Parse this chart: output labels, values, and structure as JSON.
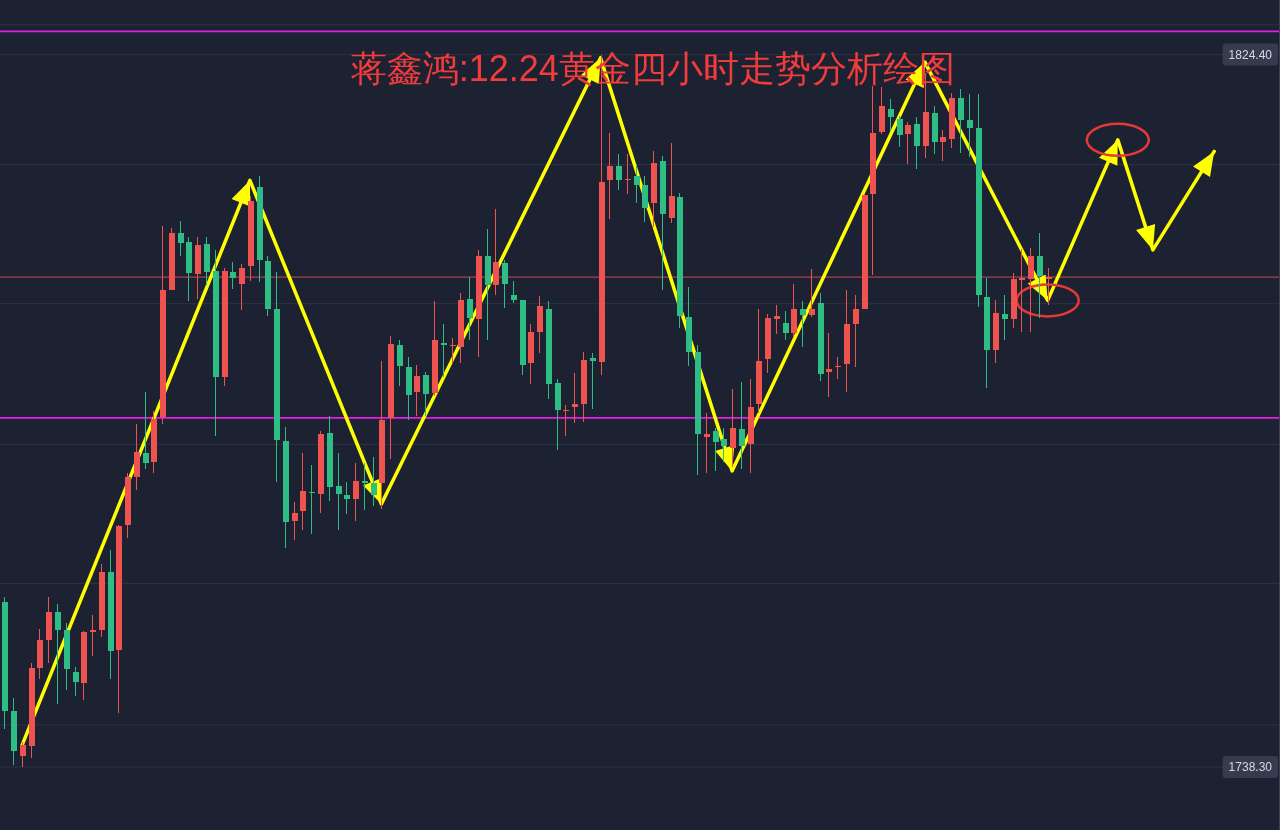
{
  "chart_data": {
    "type": "candlestick",
    "title": "蒋鑫鸿:12.24黄金四小时走势分析绘图",
    "categories": [
      null,
      null,
      null,
      null,
      null,
      null,
      null,
      null,
      null,
      null,
      null,
      null,
      null,
      null,
      null,
      null,
      null,
      null,
      null,
      null,
      null,
      null,
      null,
      null,
      null,
      null,
      null,
      null,
      null,
      null,
      null,
      null,
      null,
      null,
      null,
      null,
      null,
      null,
      null,
      null,
      null,
      null,
      null,
      null,
      null,
      null,
      null,
      null,
      null,
      null,
      null,
      null,
      null,
      null,
      null,
      null,
      null,
      null,
      null,
      null,
      null,
      null,
      null,
      null,
      null,
      null,
      null,
      null,
      null,
      null,
      null,
      null,
      null,
      null,
      null,
      null,
      null,
      null,
      null,
      null,
      null,
      null,
      null,
      null,
      null,
      null,
      null,
      null,
      null,
      null,
      null,
      null,
      null,
      null,
      null,
      null,
      null,
      null,
      null,
      null,
      null,
      null,
      null,
      null,
      null,
      null,
      null,
      null,
      null,
      null,
      null,
      null,
      null,
      null,
      null,
      null,
      null,
      null,
      null,
      null,
      null,
      null,
      null,
      null,
      null,
      null,
      null,
      null,
      null,
      null,
      null,
      null,
      null,
      null,
      null,
      null,
      null,
      null,
      null,
      null,
      null,
      null,
      null,
      null,
      null,
      null
    ],
    "ohlc": [
      [
        1758.3,
        1758.8,
        1742.9,
        1745.1
      ],
      [
        1745.1,
        1746.6,
        1738.6,
        1740.2
      ],
      [
        1739.7,
        1741.3,
        1738.3,
        1741.0
      ],
      [
        1740.9,
        1750.9,
        1739.4,
        1750.3
      ],
      [
        1750.3,
        1755.0,
        1748.9,
        1753.7
      ],
      [
        1753.7,
        1758.8,
        1750.9,
        1757.0
      ],
      [
        1757.1,
        1758.0,
        1745.9,
        1754.9
      ],
      [
        1754.9,
        1755.7,
        1747.6,
        1750.1
      ],
      [
        1749.8,
        1750.4,
        1746.9,
        1748.6
      ],
      [
        1748.5,
        1754.7,
        1746.4,
        1754.6
      ],
      [
        1754.6,
        1756.7,
        1751.7,
        1754.9
      ],
      [
        1754.9,
        1762.9,
        1754.0,
        1761.9
      ],
      [
        1761.9,
        1764.5,
        1748.9,
        1752.3
      ],
      [
        1752.5,
        1767.5,
        1744.8,
        1767.4
      ],
      [
        1767.5,
        1773.8,
        1766.0,
        1773.3
      ],
      [
        1773.3,
        1779.8,
        1771.8,
        1776.4
      ],
      [
        1776.3,
        1783.6,
        1774.3,
        1775.0
      ],
      [
        1775.2,
        1781.3,
        1773.8,
        1780.4
      ],
      [
        1780.6,
        1803.7,
        1779.8,
        1796.0
      ],
      [
        1796.0,
        1803.4,
        1795.9,
        1802.9
      ],
      [
        1802.9,
        1804.3,
        1800.1,
        1801.6
      ],
      [
        1801.8,
        1802.3,
        1794.6,
        1798.0
      ],
      [
        1797.9,
        1802.4,
        1794.9,
        1801.4
      ],
      [
        1801.5,
        1802.3,
        1796.6,
        1798.1
      ],
      [
        1798.2,
        1800.8,
        1778.3,
        1785.5
      ],
      [
        1785.4,
        1798.6,
        1784.3,
        1798.2
      ],
      [
        1798.1,
        1799.3,
        1796.1,
        1797.4
      ],
      [
        1796.7,
        1799.1,
        1793.5,
        1798.6
      ],
      [
        1798.8,
        1807.3,
        1797.1,
        1806.7
      ],
      [
        1808.4,
        1809.7,
        1796.9,
        1799.6
      ],
      [
        1799.4,
        1800.1,
        1792.8,
        1793.6
      ],
      [
        1793.6,
        1798.1,
        1772.8,
        1777.8
      ],
      [
        1777.7,
        1779.4,
        1764.8,
        1767.9
      ],
      [
        1768.0,
        1770.3,
        1765.8,
        1769.0
      ],
      [
        1769.2,
        1776.2,
        1767.0,
        1771.7
      ],
      [
        1771.5,
        1774.8,
        1766.5,
        1771.4
      ],
      [
        1771.3,
        1778.9,
        1769.0,
        1778.5
      ],
      [
        1778.7,
        1780.7,
        1770.5,
        1772.2
      ],
      [
        1772.3,
        1776.2,
        1766.9,
        1771.3
      ],
      [
        1771.2,
        1772.7,
        1768.9,
        1770.7
      ],
      [
        1770.7,
        1775.1,
        1768.1,
        1772.9
      ],
      [
        1772.9,
        1775.1,
        1769.4,
        1772.6
      ],
      [
        1772.6,
        1775.8,
        1769.9,
        1771.2
      ],
      [
        1772.6,
        1787.4,
        1769.5,
        1780.2
      ],
      [
        1780.5,
        1790.4,
        1775.5,
        1789.4
      ],
      [
        1789.3,
        1789.9,
        1784.3,
        1786.8
      ],
      [
        1786.6,
        1787.9,
        1780.3,
        1783.3
      ],
      [
        1783.6,
        1786.9,
        1780.7,
        1785.6
      ],
      [
        1785.7,
        1786.1,
        1780.7,
        1783.4
      ],
      [
        1783.5,
        1794.6,
        1783.1,
        1789.9
      ],
      [
        1789.5,
        1791.8,
        1785.5,
        1789.3
      ],
      [
        1789.2,
        1790.2,
        1787.1,
        1789.3
      ],
      [
        1789.1,
        1795.6,
        1787.1,
        1794.8
      ],
      [
        1794.9,
        1797.5,
        1789.9,
        1792.6
      ],
      [
        1792.4,
        1800.8,
        1787.9,
        1800.1
      ],
      [
        1800.1,
        1803.3,
        1789.9,
        1796.5
      ],
      [
        1796.5,
        1805.7,
        1795.4,
        1799.3
      ],
      [
        1799.2,
        1799.6,
        1793.8,
        1796.7
      ],
      [
        1795.4,
        1797.0,
        1794.4,
        1794.8
      ],
      [
        1794.7,
        1794.8,
        1785.7,
        1786.9
      ],
      [
        1787.1,
        1791.8,
        1784.6,
        1790.9
      ],
      [
        1790.9,
        1795.2,
        1788.3,
        1794.0
      ],
      [
        1793.7,
        1794.6,
        1782.8,
        1784.6
      ],
      [
        1784.7,
        1785.2,
        1776.6,
        1781.4
      ],
      [
        1781.3,
        1782.1,
        1778.3,
        1781.4
      ],
      [
        1781.8,
        1785.9,
        1779.9,
        1782.2
      ],
      [
        1782.2,
        1788.5,
        1780.0,
        1787.5
      ],
      [
        1787.7,
        1788.3,
        1781.6,
        1787.4
      ],
      [
        1787.3,
        1824.4,
        1785.7,
        1809.0
      ],
      [
        1809.3,
        1814.9,
        1804.5,
        1811.0
      ],
      [
        1811.0,
        1812.4,
        1808.0,
        1809.2
      ],
      [
        1809.2,
        1812.4,
        1807.6,
        1809.4
      ],
      [
        1809.7,
        1810.9,
        1806.5,
        1808.7
      ],
      [
        1808.6,
        1809.7,
        1804.2,
        1805.9
      ],
      [
        1806.5,
        1812.7,
        1803.6,
        1811.3
      ],
      [
        1811.6,
        1812.2,
        1795.9,
        1805.1
      ],
      [
        1804.7,
        1813.7,
        1804.1,
        1807.3
      ],
      [
        1807.2,
        1807.7,
        1791.4,
        1792.8
      ],
      [
        1792.7,
        1796.3,
        1786.8,
        1788.5
      ],
      [
        1788.5,
        1789.3,
        1773.6,
        1778.6
      ],
      [
        1778.2,
        1781.1,
        1773.8,
        1778.5
      ],
      [
        1778.9,
        1779.3,
        1774.1,
        1777.6
      ],
      [
        1777.9,
        1779.3,
        1775.2,
        1777.1
      ],
      [
        1776.9,
        1784.0,
        1774.6,
        1779.3
      ],
      [
        1779.1,
        1784.8,
        1774.3,
        1777.1
      ],
      [
        1777.3,
        1785.2,
        1773.8,
        1781.8
      ],
      [
        1782.2,
        1793.7,
        1781.1,
        1787.4
      ],
      [
        1787.6,
        1793.0,
        1785.9,
        1792.6
      ],
      [
        1792.5,
        1794.2,
        1790.6,
        1792.8
      ],
      [
        1792.0,
        1793.4,
        1789.9,
        1790.7
      ],
      [
        1790.7,
        1796.7,
        1790.3,
        1793.6
      ],
      [
        1793.7,
        1794.6,
        1789.1,
        1792.9
      ],
      [
        1792.9,
        1798.5,
        1792.7,
        1793.6
      ],
      [
        1794.4,
        1795.6,
        1785.0,
        1785.8
      ],
      [
        1786.0,
        1790.8,
        1783.0,
        1786.4
      ],
      [
        1786.6,
        1787.9,
        1785.2,
        1786.8
      ],
      [
        1787.0,
        1795.9,
        1783.6,
        1791.9
      ],
      [
        1791.8,
        1795.4,
        1786.6,
        1793.7
      ],
      [
        1793.7,
        1807.5,
        1793.6,
        1807.4
      ],
      [
        1807.5,
        1820.6,
        1797.8,
        1814.9
      ],
      [
        1815.0,
        1820.5,
        1814.8,
        1818.2
      ],
      [
        1817.8,
        1819.0,
        1815.2,
        1816.9
      ],
      [
        1816.6,
        1817.0,
        1813.2,
        1814.7
      ],
      [
        1814.8,
        1816.2,
        1811.2,
        1815.9
      ],
      [
        1816.0,
        1816.9,
        1810.6,
        1813.3
      ],
      [
        1813.4,
        1822.2,
        1811.9,
        1817.5
      ],
      [
        1817.4,
        1818.2,
        1812.4,
        1813.9
      ],
      [
        1813.9,
        1815.3,
        1811.6,
        1814.5
      ],
      [
        1814.2,
        1819.8,
        1813.1,
        1819.2
      ],
      [
        1819.1,
        1820.3,
        1812.5,
        1816.5
      ],
      [
        1816.5,
        1819.6,
        1812.0,
        1815.5
      ],
      [
        1815.5,
        1819.6,
        1793.9,
        1795.4
      ],
      [
        1795.1,
        1797.4,
        1784.1,
        1788.7
      ],
      [
        1788.7,
        1794.8,
        1787.1,
        1793.2
      ],
      [
        1793.1,
        1795.4,
        1789.9,
        1792.5
      ],
      [
        1792.4,
        1798.0,
        1791.4,
        1797.3
      ],
      [
        1797.2,
        1800.9,
        1790.9,
        1797.4
      ],
      [
        1797.3,
        1801.0,
        1790.9,
        1800.1
      ],
      [
        1800.1,
        1802.9,
        1792.6,
        1797.6
      ],
      [
        1797.3,
        1798.6,
        1794.2,
        1797.5
      ],
      null,
      null,
      null,
      null,
      null,
      null,
      null,
      null,
      null,
      null,
      null,
      null,
      null,
      null,
      null,
      null,
      null,
      null,
      null,
      null,
      null,
      null,
      null,
      null,
      null,
      null
    ],
    "colors": [
      "#2ebd85",
      "#2ebd85",
      "#ef5350",
      "#ef5350",
      "#ef5350",
      "#ef5350",
      "#2ebd85",
      "#2ebd85",
      "#2ebd85",
      "#ef5350",
      "#ef5350",
      "#ef5350",
      "#2ebd85",
      "#ef5350",
      "#ef5350",
      "#ef5350",
      "#2ebd85",
      "#ef5350",
      "#ef5350",
      "#ef5350",
      "#2ebd85",
      "#2ebd85",
      "#ef5350",
      "#2ebd85",
      "#2ebd85",
      "#ef5350",
      "#2ebd85",
      "#ef5350",
      "#ef5350",
      "#2ebd85",
      "#2ebd85",
      "#2ebd85",
      "#2ebd85",
      "#ef5350",
      "#ef5350",
      "#2ebd85",
      "#ef5350",
      "#2ebd85",
      "#2ebd85",
      "#2ebd85",
      "#ef5350",
      "#2ebd85",
      "#2ebd85",
      "#ef5350",
      "#ef5350",
      "#2ebd85",
      "#2ebd85",
      "#ef5350",
      "#2ebd85",
      "#ef5350",
      "#2ebd85",
      "#ef5350",
      "#ef5350",
      "#2ebd85",
      "#ef5350",
      "#2ebd85",
      "#ef5350",
      "#2ebd85",
      "#2ebd85",
      "#2ebd85",
      "#ef5350",
      "#ef5350",
      "#2ebd85",
      "#2ebd85",
      "#ef5350",
      "#ef5350",
      "#ef5350",
      "#2ebd85",
      "#ef5350",
      "#ef5350",
      "#2ebd85",
      "#ef5350",
      "#2ebd85",
      "#2ebd85",
      "#ef5350",
      "#2ebd85",
      "#ef5350",
      "#2ebd85",
      "#2ebd85",
      "#2ebd85",
      "#ef5350",
      "#2ebd85",
      "#2ebd85",
      "#ef5350",
      "#2ebd85",
      "#ef5350",
      "#ef5350",
      "#ef5350",
      "#ef5350",
      "#2ebd85",
      "#ef5350",
      "#2ebd85",
      "#ef5350",
      "#2ebd85",
      "#ef5350",
      "#ef5350",
      "#ef5350",
      "#ef5350",
      "#ef5350",
      "#ef5350",
      "#ef5350",
      "#2ebd85",
      "#2ebd85",
      "#ef5350",
      "#2ebd85",
      "#ef5350",
      "#2ebd85",
      "#ef5350",
      "#ef5350",
      "#2ebd85",
      "#2ebd85",
      "#2ebd85",
      "#2ebd85",
      "#ef5350",
      "#2ebd85",
      "#ef5350",
      "#ef5350",
      "#ef5350",
      "#2ebd85",
      "#ef5350",
      null,
      null,
      null,
      null,
      null,
      null,
      null,
      null,
      null,
      null,
      null,
      null,
      null,
      null,
      null,
      null,
      null,
      null,
      null,
      null,
      null,
      null,
      null,
      null,
      null,
      null
    ],
    "series": [
      {
        "type": "line",
        "color": "#ffff00",
        "values": [
          null,
          null,
          1740.9,
          null,
          null,
          null,
          null,
          null,
          null,
          null,
          null,
          null,
          null,
          null,
          null,
          null,
          null,
          null,
          null,
          null,
          null,
          null,
          null,
          null,
          null,
          null,
          null,
          null,
          1809.2,
          null,
          null,
          null,
          null,
          null,
          null,
          null,
          null,
          null,
          null,
          null,
          null,
          null,
          null,
          1770.1,
          null,
          null,
          null,
          null,
          null,
          null,
          null,
          null,
          null,
          null,
          null,
          null,
          null,
          null,
          null,
          null,
          null,
          null,
          null,
          null,
          null,
          null,
          null,
          null,
          1824.0,
          null,
          null,
          null,
          null,
          null,
          null,
          null,
          null,
          null,
          null,
          null,
          null,
          null,
          null,
          1774.1,
          null,
          null,
          null,
          null,
          null,
          null,
          null,
          null,
          null,
          null,
          null,
          null,
          null,
          null,
          null,
          null,
          null,
          null,
          null,
          null,
          null,
          1823.5,
          null,
          null,
          null,
          null,
          null,
          null,
          null,
          null,
          null,
          null,
          null,
          null,
          null,
          1794.7,
          null,
          null,
          null,
          null,
          null,
          null,
          null,
          1814.1,
          null,
          null,
          null,
          1800.8,
          null,
          null,
          null,
          null,
          null,
          null,
          1812.7,
          null,
          null,
          null,
          null,
          null,
          null,
          null
        ]
      }
    ],
    "ylim": [
      1730.7,
      1831.0
    ],
    "yticks": [
      {
        "value": 1824.4,
        "label": "1824.40"
      },
      {
        "value": 1738.3,
        "label": "1738.30"
      },
      {
        "value": 1828.0,
        "label": null
      },
      {
        "value": 1811.1,
        "label": null
      },
      {
        "value": 1794.3,
        "label": null
      },
      {
        "value": 1777.3,
        "label": null
      },
      {
        "value": 1760.5,
        "label": null
      },
      {
        "value": 1743.4,
        "label": null
      }
    ],
    "grid": "y",
    "tick_labels": "y",
    "ref_lines": [
      {
        "axis": "y",
        "value": 1827.2,
        "color": "#e21fe2"
      },
      {
        "axis": "y",
        "value": 1780.5,
        "color": "#e21fe2"
      },
      {
        "axis": "y",
        "value": 1797.5,
        "color": "#7d3a46"
      }
    ]
  }
}
